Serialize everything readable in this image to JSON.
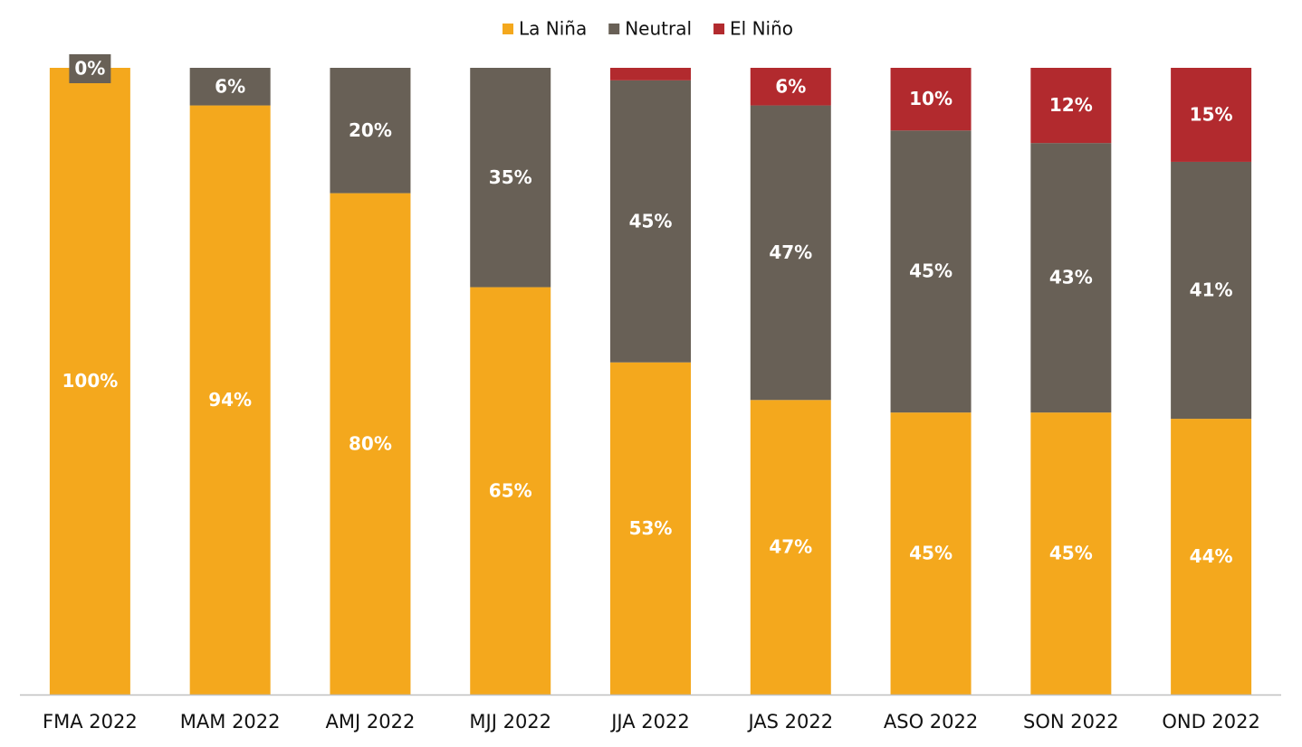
{
  "chart_data": {
    "type": "stacked_bar",
    "categories": [
      "FMA 2022",
      "MAM 2022",
      "AMJ 2022",
      "MJJ 2022",
      "JJA 2022",
      "JAS 2022",
      "ASO 2022",
      "SON 2022",
      "OND 2022"
    ],
    "series": [
      {
        "name": "La Niña",
        "color": "#f4a81d",
        "values": [
          100,
          94,
          80,
          65,
          53,
          47,
          45,
          45,
          44
        ],
        "value_labels": [
          "100%",
          "94%",
          "80%",
          "65%",
          "53%",
          "47%",
          "45%",
          "45%",
          "44%"
        ]
      },
      {
        "name": "Neutral",
        "color": "#686056",
        "values": [
          0,
          6,
          20,
          35,
          45,
          47,
          45,
          43,
          41
        ],
        "value_labels": [
          "0%",
          "6%",
          "20%",
          "35%",
          "45%",
          "47%",
          "45%",
          "43%",
          "41%"
        ]
      },
      {
        "name": "El Niño",
        "color": "#b22a2e",
        "values": [
          0,
          0,
          0,
          0,
          2,
          6,
          10,
          12,
          15
        ],
        "value_labels": [
          null,
          null,
          null,
          null,
          null,
          "6%",
          "10%",
          "12%",
          "15%"
        ]
      }
    ],
    "ylim": [
      0,
      100
    ],
    "legend": "top"
  }
}
